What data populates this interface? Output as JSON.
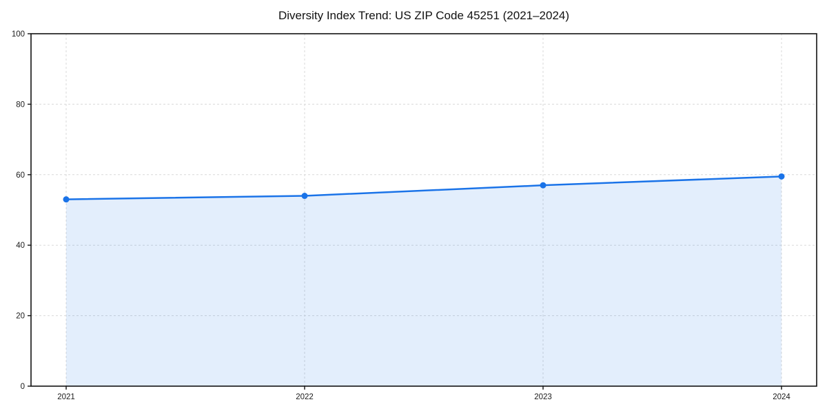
{
  "chart_data": {
    "type": "area",
    "title": "Diversity Index Trend: US ZIP Code 45251 (2021–2024)",
    "series_name": "Diversity Index",
    "categories": [
      "2021",
      "2022",
      "2023",
      "2024"
    ],
    "values": [
      53,
      54,
      57,
      59.5
    ],
    "xlabel": "",
    "ylabel": "",
    "ylim": [
      0,
      100
    ],
    "yticks": [
      0,
      20,
      40,
      60,
      80,
      100
    ],
    "grid": true,
    "grid_style": "dashed",
    "legend": "none",
    "marker": "circle",
    "colors": {
      "line": "#1a73e8",
      "marker": "#1a73e8",
      "area_fill": "#1a73e8",
      "area_fill_opacity": 0.12,
      "gridline": "#d9d9d9",
      "axis": "#111111",
      "tick_label": "#1a1a1a",
      "title": "#111111",
      "background": "#ffffff"
    }
  }
}
